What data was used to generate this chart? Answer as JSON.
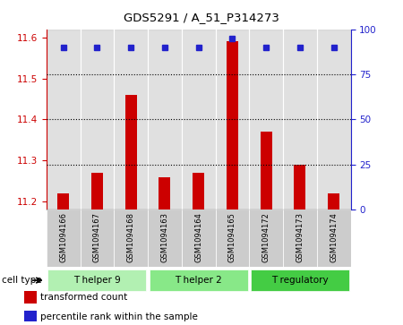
{
  "title": "GDS5291 / A_51_P314273",
  "samples": [
    "GSM1094166",
    "GSM1094167",
    "GSM1094168",
    "GSM1094163",
    "GSM1094164",
    "GSM1094165",
    "GSM1094172",
    "GSM1094173",
    "GSM1094174"
  ],
  "transformed_counts": [
    11.22,
    11.27,
    11.46,
    11.26,
    11.27,
    11.59,
    11.37,
    11.29,
    11.22
  ],
  "percentile_ranks": [
    90,
    90,
    90,
    90,
    90,
    95,
    90,
    90,
    90
  ],
  "cell_types": [
    {
      "label": "T helper 9",
      "start": 0,
      "end": 3,
      "color": "#b2f0b2"
    },
    {
      "label": "T helper 2",
      "start": 3,
      "end": 6,
      "color": "#88e888"
    },
    {
      "label": "T regulatory",
      "start": 6,
      "end": 9,
      "color": "#44cc44"
    }
  ],
  "ylim_left": [
    11.18,
    11.62
  ],
  "ylim_right": [
    0,
    100
  ],
  "yticks_left": [
    11.2,
    11.3,
    11.4,
    11.5,
    11.6
  ],
  "yticks_right": [
    0,
    25,
    50,
    75,
    100
  ],
  "bar_color": "#cc0000",
  "dot_color": "#2222cc",
  "bar_bottom": 11.18,
  "col_bg_color": "#cccccc",
  "legend_items": [
    "transformed count",
    "percentile rank within the sample"
  ],
  "legend_colors": [
    "#cc0000",
    "#2222cc"
  ]
}
